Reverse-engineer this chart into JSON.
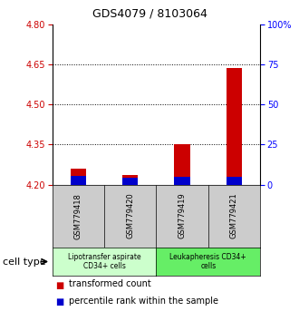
{
  "title": "GDS4079 / 8103064",
  "samples": [
    "GSM779418",
    "GSM779420",
    "GSM779419",
    "GSM779421"
  ],
  "red_values": [
    4.258,
    4.237,
    4.352,
    4.635
  ],
  "blue_values": [
    4.232,
    4.224,
    4.228,
    4.228
  ],
  "ylim_left": [
    4.2,
    4.8
  ],
  "ylim_right": [
    0,
    100
  ],
  "left_ticks": [
    4.2,
    4.35,
    4.5,
    4.65,
    4.8
  ],
  "right_ticks": [
    0,
    25,
    50,
    75,
    100
  ],
  "right_tick_labels": [
    "0",
    "25",
    "50",
    "75",
    "100%"
  ],
  "dotted_lines": [
    4.35,
    4.5,
    4.65
  ],
  "bar_bottom": 4.2,
  "red_color": "#cc0000",
  "blue_color": "#0000cc",
  "bar_width": 0.3,
  "groups": [
    {
      "label": "Lipotransfer aspirate\nCD34+ cells",
      "samples": [
        0,
        1
      ],
      "color": "#ccffcc"
    },
    {
      "label": "Leukapheresis CD34+\ncells",
      "samples": [
        2,
        3
      ],
      "color": "#66ee66"
    }
  ],
  "cell_type_label": "cell type",
  "legend_red": "transformed count",
  "legend_blue": "percentile rank within the sample",
  "sample_box_color": "#cccccc",
  "title_fontsize": 9,
  "tick_fontsize": 7,
  "sample_fontsize": 6,
  "group_fontsize": 5.5,
  "legend_fontsize": 7,
  "cell_type_fontsize": 8
}
